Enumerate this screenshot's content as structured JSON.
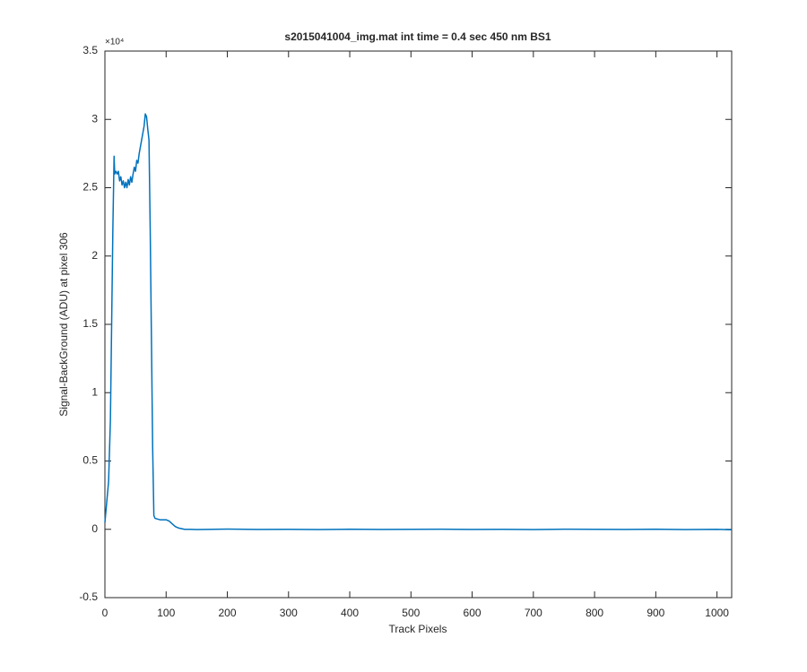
{
  "chart_data": {
    "type": "line",
    "title": "s2015041004_img.mat int time = 0.4 sec  450 nm BS1",
    "x_label": "Track Pixels",
    "y_label": "Signal-BackGround (ADU) at pixel 306",
    "y_exponent_label": "×10⁴",
    "color": "#0072bd",
    "x": [
      0,
      3,
      6,
      9,
      11,
      13,
      15,
      16,
      18,
      20,
      22,
      24,
      26,
      28,
      30,
      32,
      34,
      36,
      38,
      40,
      42,
      44,
      46,
      48,
      50,
      52,
      54,
      56,
      58,
      60,
      62,
      64,
      66,
      68,
      70,
      72,
      74,
      76,
      78,
      80,
      82,
      90,
      100,
      105,
      110,
      115,
      120,
      130,
      140,
      150,
      200,
      250,
      300,
      350,
      400,
      450,
      500,
      550,
      600,
      650,
      700,
      750,
      800,
      850,
      900,
      950,
      1000,
      1024
    ],
    "values": [
      500,
      2000,
      3500,
      8000,
      15000,
      22000,
      27300,
      26000,
      26200,
      26000,
      26200,
      25500,
      25800,
      25200,
      25500,
      25000,
      25400,
      25000,
      25600,
      25200,
      25800,
      25400,
      26000,
      26500,
      26200,
      27000,
      26800,
      27500,
      28000,
      28500,
      29000,
      29500,
      30400,
      30200,
      29300,
      28500,
      22000,
      14000,
      6000,
      1000,
      800,
      700,
      700,
      600,
      400,
      200,
      100,
      0,
      0,
      -20,
      20,
      -10,
      0,
      -20,
      10,
      -10,
      0,
      10,
      -10,
      0,
      -20,
      10,
      0,
      -10,
      10,
      -20,
      0,
      -30
    ],
    "xlim": [
      0,
      1024
    ],
    "xticks": [
      0,
      100,
      200,
      300,
      400,
      500,
      600,
      700,
      800,
      900,
      1000
    ],
    "ylim": [
      -5000,
      35000
    ],
    "yticks": [
      {
        "value": -5000,
        "label": "-0.5"
      },
      0,
      {
        "value": 5000,
        "label": "0.5"
      },
      {
        "value": 10000,
        "label": "1"
      },
      {
        "value": 15000,
        "label": "1.5"
      },
      {
        "value": 20000,
        "label": "2"
      },
      {
        "value": 25000,
        "label": "2.5"
      },
      {
        "value": 30000,
        "label": "3"
      },
      {
        "value": 35000,
        "label": "3.5"
      }
    ],
    "grid": false
  }
}
